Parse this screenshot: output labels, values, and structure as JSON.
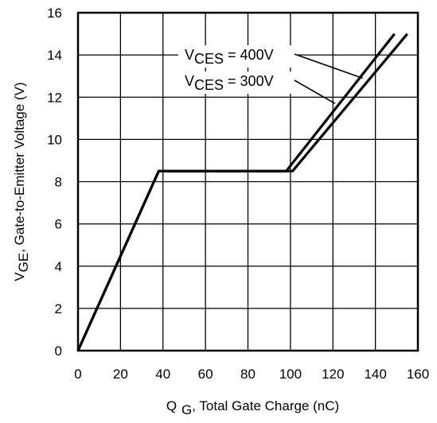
{
  "chart_data": {
    "type": "line",
    "title": "",
    "xlabel": {
      "main": "Q",
      "sub": "G",
      "rest": ", Total Gate Charge (nC)"
    },
    "ylabel": {
      "main": "V",
      "sub": "GE",
      "rest": ", Gate-to-Emitter Voltage (V)"
    },
    "xlim": [
      0,
      160
    ],
    "ylim": [
      0,
      16
    ],
    "x_ticks": [
      "0",
      "20",
      "40",
      "60",
      "80",
      "100",
      "120",
      "140",
      "160"
    ],
    "y_ticks": [
      "0",
      "2",
      "4",
      "6",
      "8",
      "10",
      "12",
      "14",
      "16"
    ],
    "grid": true,
    "series": [
      {
        "name_main": "V",
        "name_sub": "CES",
        "name_rest": " = 400V",
        "x": [
          0,
          38,
          101,
          155
        ],
        "y": [
          0,
          8.5,
          8.5,
          15
        ]
      },
      {
        "name_main": "V",
        "name_sub": "CES",
        "name_rest": " = 300V",
        "x": [
          0,
          38,
          98,
          149
        ],
        "y": [
          0,
          8.5,
          8.5,
          15
        ]
      }
    ],
    "annotation_anchors": [
      {
        "x": 134,
        "y": 12.9
      },
      {
        "x": 121,
        "y": 11.7
      }
    ],
    "colors": {
      "line": "#000000",
      "grid": "#000000",
      "frame": "#000000"
    }
  }
}
